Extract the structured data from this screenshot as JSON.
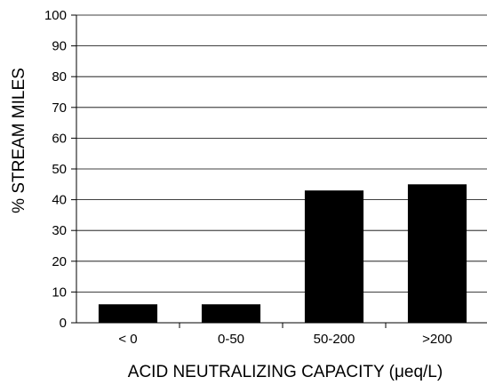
{
  "chart_data": {
    "type": "bar",
    "categories": [
      "< 0",
      "0-50",
      "50-200",
      ">200"
    ],
    "values": [
      6,
      6,
      43,
      45
    ],
    "title": "",
    "xlabel": "ACID NEUTRALIZING CAPACITY (μeq/L)",
    "ylabel": "% STREAM MILES",
    "ylim": [
      0,
      100
    ],
    "yticks": [
      0,
      10,
      20,
      30,
      40,
      50,
      60,
      70,
      80,
      90,
      100
    ],
    "grid": true,
    "legend": "none",
    "colors": {
      "bar": "#000000",
      "grid": "#000000",
      "axis": "#000000"
    }
  }
}
